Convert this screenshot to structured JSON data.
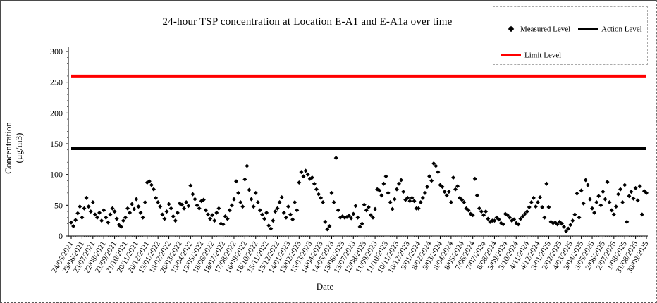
{
  "window": {
    "background": "#ffffff",
    "border_color": "#4a4a4a"
  },
  "chart_data": {
    "type": "scatter",
    "title": "24-hour TSP concentration at Location E-A1 and E-A1a over time",
    "xlabel": "Date",
    "ylabel_lines": [
      "Concentration",
      "(µg/m3)"
    ],
    "ylim": [
      0,
      300
    ],
    "y_ticks": [
      0,
      50,
      100,
      150,
      200,
      250,
      300
    ],
    "grid": false,
    "x_tick_labels": [
      "24/05/2021",
      "23/06/2021",
      "23/07/2021",
      "22/08/2021",
      "21/09/2021",
      "21/10/2021",
      "20/11/2021",
      "20/12/2021",
      "19/01/2022",
      "18/02/2022",
      "20/03/2022",
      "19/04/2022",
      "19/05/2022",
      "18/06/2022",
      "18/07/2022",
      "17/08/2022",
      "16/09/2022",
      "16/10/2022",
      "15/11/2022",
      "15/12/2022",
      "14/01/2023",
      "13/02/2023",
      "15/03/2023",
      "14/04/2023",
      "14/05/2023",
      "13/06/2023",
      "13/07/2023",
      "12/08/2023",
      "11/09/2023",
      "11/10/2023",
      "10/11/2023",
      "10/12/2023",
      "9/01/2024",
      "8/02/2024",
      "9/03/2024",
      "8/04/2024",
      "8/05/2024",
      "7/06/2024",
      "7/07/2024",
      "6/08/2024",
      "5/09/2024",
      "5/10/2024",
      "4/11/2024",
      "4/12/2024",
      "3/01/2025",
      "2/02/2025",
      "4/03/2025",
      "3/04/2025",
      "3/05/2025",
      "2/06/2025",
      "2/07/2025",
      "1/08/2025",
      "31/08/2025",
      "30/09/2025"
    ],
    "legend": {
      "position": "top-right",
      "entries": [
        {
          "label": "Measured Level",
          "marker": "diamond",
          "color": "#000000"
        },
        {
          "label": "Action Level",
          "marker": "line",
          "color": "#000000"
        },
        {
          "label": "Limit Level",
          "marker": "line",
          "color": "#ff0000"
        }
      ]
    },
    "reference_lines": [
      {
        "name": "Action Level",
        "value": 142,
        "color": "#000000",
        "thickness": 4
      },
      {
        "name": "Limit Level",
        "value": 260,
        "color": "#ff0000",
        "thickness": 4
      }
    ],
    "series": [
      {
        "name": "Measured Level",
        "marker": "diamond",
        "color": "#000000",
        "start_date": "24/05/2021",
        "interval_days": 6,
        "values_estimated": true,
        "values": [
          22,
          16,
          26,
          37,
          48,
          30,
          45,
          62,
          48,
          40,
          55,
          35,
          30,
          38,
          25,
          42,
          30,
          22,
          35,
          45,
          40,
          28,
          18,
          15,
          25,
          30,
          45,
          38,
          52,
          44,
          60,
          48,
          38,
          30,
          55,
          87,
          89,
          83,
          76,
          62,
          55,
          48,
          35,
          28,
          40,
          52,
          45,
          32,
          25,
          38,
          53,
          51,
          45,
          55,
          49,
          82,
          68,
          60,
          50,
          45,
          57,
          59,
          42,
          35,
          28,
          34,
          25,
          38,
          45,
          20,
          19,
          32,
          28,
          42,
          50,
          60,
          89,
          70,
          55,
          48,
          92,
          114,
          75,
          60,
          48,
          70,
          55,
          42,
          35,
          28,
          38,
          17,
          12,
          25,
          40,
          45,
          55,
          63,
          38,
          30,
          48,
          35,
          27,
          55,
          42,
          87,
          104,
          97,
          106,
          100,
          93,
          95,
          85,
          76,
          68,
          62,
          55,
          23,
          11,
          16,
          70,
          55,
          127,
          42,
          30,
          32,
          30,
          31,
          33,
          29,
          36,
          49,
          30,
          15,
          20,
          51,
          42,
          47,
          34,
          30,
          44,
          76,
          74,
          66,
          85,
          97,
          70,
          55,
          44,
          60,
          76,
          85,
          91,
          72,
          59,
          62,
          57,
          62,
          57,
          45,
          45,
          55,
          62,
          70,
          80,
          97,
          90,
          118,
          114,
          104,
          83,
          80,
          72,
          66,
          72,
          55,
          95,
          76,
          81,
          62,
          59,
          55,
          45,
          42,
          36,
          34,
          93,
          66,
          45,
          40,
          34,
          40,
          28,
          23,
          25,
          25,
          30,
          27,
          21,
          19,
          36,
          34,
          30,
          25,
          27,
          21,
          19,
          28,
          32,
          36,
          40,
          47,
          55,
          62,
          48,
          55,
          63,
          47,
          30,
          85,
          47,
          23,
          21,
          22,
          19,
          23,
          20,
          15,
          8,
          12,
          18,
          25,
          35,
          69,
          30,
          74,
          53,
          91,
          83,
          60,
          45,
          38,
          55,
          65,
          50,
          72,
          60,
          88,
          55,
          42,
          35,
          48,
          68,
          76,
          55,
          83,
          23,
          65,
          72,
          61,
          78,
          58,
          81,
          35,
          73,
          70
        ]
      }
    ]
  }
}
